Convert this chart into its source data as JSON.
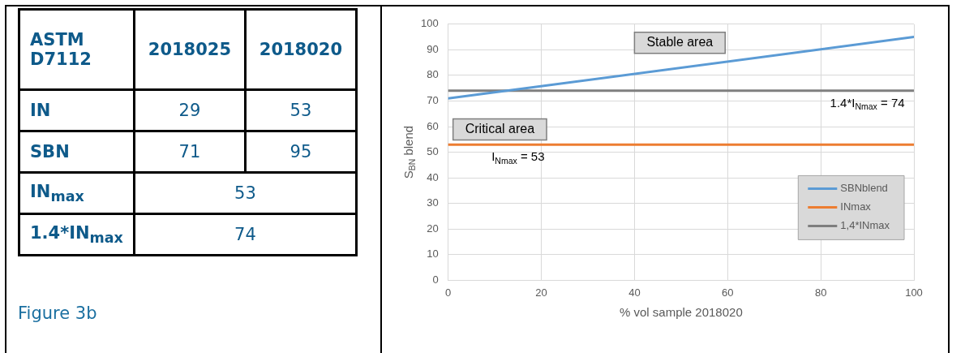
{
  "chart_data": [
    {
      "type": "other",
      "annotations": [
        "ASTM D7112",
        "2018025",
        "2018020",
        "IN",
        "29",
        "53",
        "SBN",
        "71",
        "95",
        "IN$_{max}$",
        "53",
        "1.4*IN$_{max}$",
        "74",
        "Figure 3b"
      ]
    },
    {
      "type": "line",
      "xlabel": "% vol sample 2018020",
      "ylabel": "S$_{BN}$ blend",
      "xlim": [
        0,
        100
      ],
      "xticks": [
        0,
        20,
        40,
        60,
        80,
        100
      ],
      "ylim": [
        0,
        100
      ],
      "yticks": [
        0,
        10,
        20,
        30,
        40,
        50,
        60,
        70,
        80,
        90,
        100
      ],
      "grid": true,
      "legend": "bottom right",
      "marker": "none",
      "line_style": "solid",
      "x": [
        0,
        100
      ],
      "series": [
        {
          "name": "SBNblend",
          "color": "#5b9bd5",
          "values": [
            71,
            95
          ]
        },
        {
          "name": "INmax",
          "color": "#ed7d31",
          "values": [
            53,
            53
          ]
        },
        {
          "name": "1,4*INmax",
          "color": "#7f7f7f",
          "values": [
            74,
            74
          ]
        }
      ],
      "annotations": [
        "Stable area",
        "Critical area",
        {
          "text": "1.4*I$_{Nmax}$ = 74",
          "x": 90,
          "y": 74
        },
        {
          "text": "I$_{Nmax}$ = 53",
          "x": 15,
          "y": 53
        }
      ]
    }
  ]
}
